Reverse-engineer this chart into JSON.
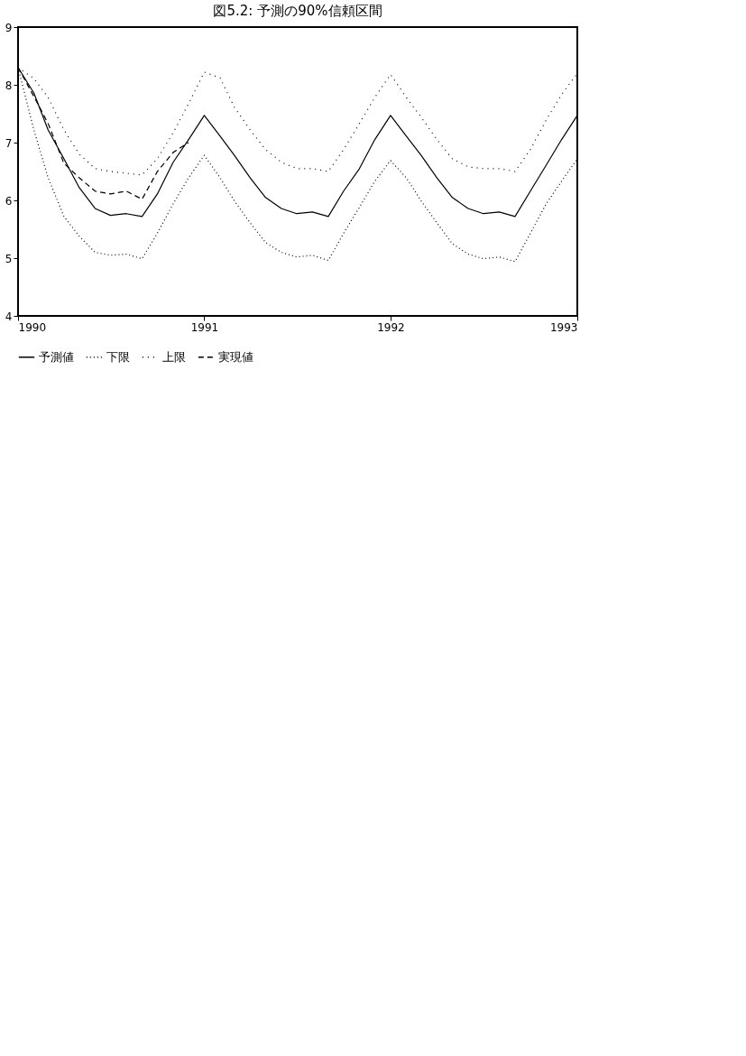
{
  "chart_data": {
    "type": "line",
    "title": "図5.2: 予測の90%信頼区間",
    "x": [
      "1990-01",
      "1990-02",
      "1990-03",
      "1990-04",
      "1990-05",
      "1990-06",
      "1990-07",
      "1990-08",
      "1990-09",
      "1990-10",
      "1990-11",
      "1990-12",
      "1991-01",
      "1991-02",
      "1991-03",
      "1991-04",
      "1991-05",
      "1991-06",
      "1991-07",
      "1991-08",
      "1991-09",
      "1991-10",
      "1991-11",
      "1991-12",
      "1992-01",
      "1992-02",
      "1992-03",
      "1992-04",
      "1992-05",
      "1992-06",
      "1992-07",
      "1992-08",
      "1992-09",
      "1992-10",
      "1992-11",
      "1992-12",
      "1993-01"
    ],
    "series": [
      {
        "name": "予測値",
        "color": "#000000",
        "line_style": "solid",
        "values": [
          8.3,
          7.86,
          7.22,
          6.72,
          6.22,
          5.86,
          5.74,
          5.77,
          5.72,
          6.11,
          6.66,
          7.05,
          7.47,
          7.11,
          6.78,
          6.39,
          6.05,
          5.86,
          5.77,
          5.8,
          5.72,
          6.16,
          6.55,
          7.05,
          7.47,
          7.11,
          6.78,
          6.39,
          6.05,
          5.86,
          5.77,
          5.8,
          5.72,
          6.16,
          6.61,
          7.05,
          7.47
        ]
      },
      {
        "name": "下限",
        "color": "#000000",
        "line_style": "dotted",
        "values": [
          8.3,
          7.22,
          6.39,
          5.72,
          5.38,
          5.1,
          5.05,
          5.07,
          4.99,
          5.43,
          5.94,
          6.39,
          6.78,
          6.39,
          5.99,
          5.61,
          5.27,
          5.1,
          5.02,
          5.05,
          4.96,
          5.43,
          5.88,
          6.33,
          6.69,
          6.39,
          5.99,
          5.61,
          5.25,
          5.07,
          4.99,
          5.02,
          4.94,
          5.43,
          5.94,
          6.33,
          6.72
        ]
      },
      {
        "name": "上限",
        "color": "#000000",
        "line_style": "dotted",
        "values": [
          8.3,
          8.11,
          7.78,
          7.22,
          6.8,
          6.55,
          6.5,
          6.47,
          6.44,
          6.72,
          7.17,
          7.67,
          8.22,
          8.12,
          7.61,
          7.22,
          6.88,
          6.66,
          6.55,
          6.55,
          6.5,
          6.88,
          7.33,
          7.78,
          8.18,
          7.78,
          7.44,
          7.05,
          6.72,
          6.58,
          6.55,
          6.55,
          6.5,
          6.88,
          7.39,
          7.83,
          8.2
        ]
      },
      {
        "name": "実現値",
        "color": "#000000",
        "line_style": "dashed",
        "values": [
          8.3,
          7.8,
          7.33,
          6.64,
          6.39,
          6.16,
          6.11,
          6.16,
          6.02,
          6.5,
          6.83,
          7.0,
          null,
          null,
          null,
          null,
          null,
          null,
          null,
          null,
          null,
          null,
          null,
          null,
          null,
          null,
          null,
          null,
          null,
          null,
          null,
          null,
          null,
          null,
          null,
          null,
          null
        ]
      }
    ],
    "xlim": [
      "1990-01",
      "1993-01"
    ],
    "xticks": [
      "1990",
      "1991",
      "1992",
      "1993"
    ],
    "ylim": [
      4,
      9
    ],
    "yticks": [
      4,
      5,
      6,
      7,
      8,
      9
    ],
    "grid": false,
    "legend": "bottom"
  }
}
